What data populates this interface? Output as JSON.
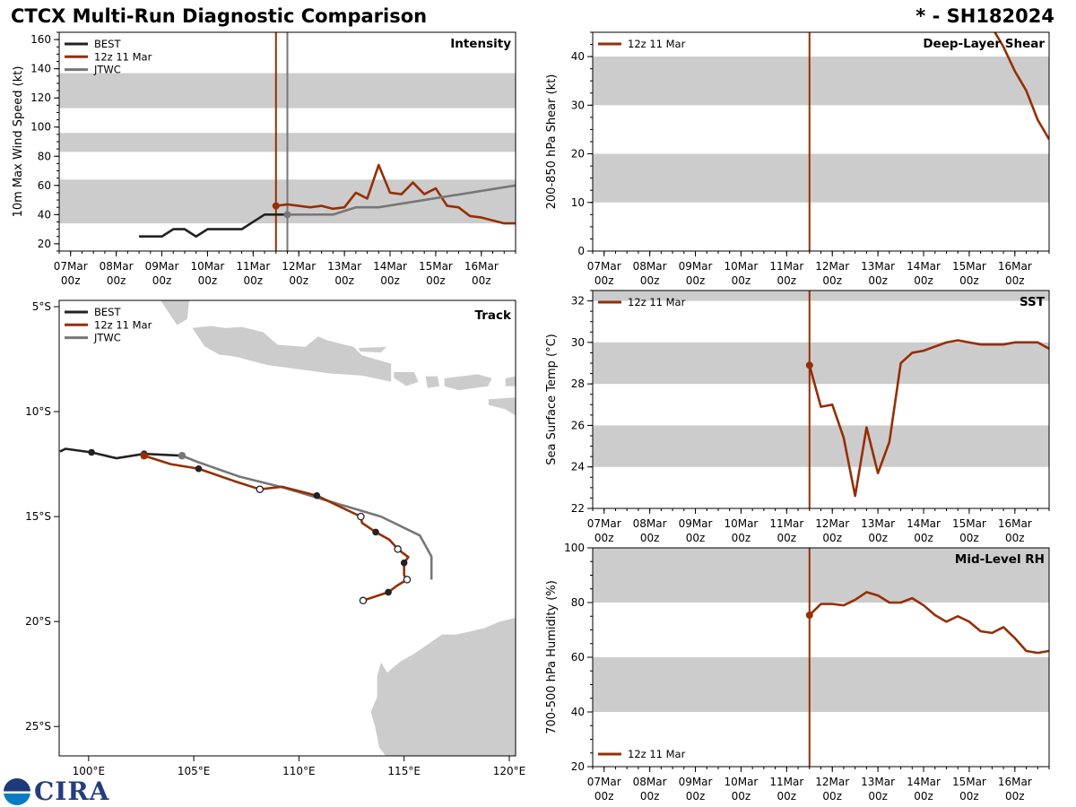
{
  "title": "CTCX Multi-Run Diagnostic Comparison",
  "storm_id": "* - SH182024",
  "logo_text": "CIRA",
  "colors": {
    "best": "#222222",
    "forecast": "#952f04",
    "jtwc": "#777777",
    "band": "#cccccc"
  },
  "legend": {
    "best": "BEST",
    "forecast": "12z 11 Mar",
    "jtwc": "JTWC"
  },
  "time_ticks": [
    "07Mar 00z",
    "08Mar 00z",
    "09Mar 00z",
    "10Mar 00z",
    "11Mar 00z",
    "12Mar 00z",
    "13Mar 00z",
    "14Mar 00z",
    "15Mar 00z",
    "16Mar 00z"
  ],
  "chart_data": [
    {
      "id": "intensity",
      "type": "line",
      "title": "Intensity",
      "ylabel": "10m Max Wind Speed (kt)",
      "ylim": [
        15,
        165
      ],
      "xlim": [
        "06Mar 18z",
        "16Mar 18z"
      ],
      "yticks": [
        20,
        40,
        60,
        80,
        100,
        120,
        140,
        160
      ],
      "bands": [
        [
          34,
          64
        ],
        [
          83,
          96
        ],
        [
          113,
          137
        ]
      ],
      "vlines": [
        {
          "x": "11Mar 12z",
          "series": "forecast"
        },
        {
          "x": "11Mar 18z",
          "series": "jtwc"
        }
      ],
      "legend_position": "top-left",
      "series": [
        {
          "name": "BEST",
          "key": "best",
          "x": [
            "08Mar 12z",
            "08Mar 18z",
            "09Mar 00z",
            "09Mar 06z",
            "09Mar 12z",
            "09Mar 18z",
            "10Mar 00z",
            "10Mar 06z",
            "10Mar 12z",
            "10Mar 18z",
            "11Mar 00z",
            "11Mar 06z",
            "11Mar 12z",
            "11Mar 18z"
          ],
          "y": [
            25,
            25,
            25,
            30,
            30,
            25,
            30,
            30,
            30,
            30,
            35,
            40,
            40,
            40
          ]
        },
        {
          "name": "12z 11 Mar",
          "key": "forecast",
          "start_marker": true,
          "x": [
            "11Mar 12z",
            "11Mar 18z",
            "12Mar 00z",
            "12Mar 06z",
            "12Mar 12z",
            "12Mar 18z",
            "13Mar 00z",
            "13Mar 06z",
            "13Mar 12z",
            "13Mar 18z",
            "14Mar 00z",
            "14Mar 06z",
            "14Mar 12z",
            "14Mar 18z",
            "15Mar 00z",
            "15Mar 06z",
            "15Mar 12z",
            "15Mar 18z",
            "16Mar 00z",
            "16Mar 06z",
            "16Mar 12z",
            "16Mar 18z"
          ],
          "y": [
            46,
            47,
            46,
            45,
            46,
            44,
            45,
            55,
            51,
            74,
            55,
            54,
            62,
            54,
            58,
            46,
            45,
            39,
            38,
            36,
            34,
            34
          ]
        },
        {
          "name": "JTWC",
          "key": "jtwc",
          "start_marker": true,
          "x": [
            "11Mar 18z",
            "12Mar 18z",
            "13Mar 06z",
            "13Mar 18z",
            "16Mar 18z"
          ],
          "y": [
            40,
            40,
            45,
            45,
            60
          ]
        }
      ]
    },
    {
      "id": "shear",
      "type": "line",
      "title": "Deep-Layer Shear",
      "ylabel": "200-850 hPa Shear (kt)",
      "ylim": [
        0,
        45
      ],
      "xlim": [
        "06Mar 18z",
        "16Mar 18z"
      ],
      "yticks": [
        0,
        10,
        20,
        30,
        40
      ],
      "bands": [
        [
          10,
          20
        ],
        [
          30,
          40
        ]
      ],
      "vlines": [
        {
          "x": "11Mar 12z",
          "series": "forecast"
        }
      ],
      "legend_position": "top-left",
      "series": [
        {
          "name": "12z 11 Mar",
          "key": "forecast",
          "x": [
            "15Mar 12z",
            "15Mar 18z",
            "16Mar 00z",
            "16Mar 06z",
            "16Mar 12z",
            "16Mar 18z"
          ],
          "y": [
            46,
            42,
            37,
            33,
            27,
            23
          ]
        }
      ]
    },
    {
      "id": "sst",
      "type": "line",
      "title": "SST",
      "ylabel": "Sea Surface Temp (°C)",
      "ylim": [
        22,
        32.5
      ],
      "xlim": [
        "06Mar 18z",
        "16Mar 18z"
      ],
      "yticks": [
        22,
        24,
        26,
        28,
        30,
        32
      ],
      "bands": [
        [
          24,
          26
        ],
        [
          28,
          30
        ],
        [
          32,
          34
        ]
      ],
      "vlines": [
        {
          "x": "11Mar 12z",
          "series": "forecast"
        }
      ],
      "legend_position": "top-left",
      "series": [
        {
          "name": "12z 11 Mar",
          "key": "forecast",
          "start_marker": true,
          "x": [
            "11Mar 12z",
            "11Mar 18z",
            "12Mar 00z",
            "12Mar 06z",
            "12Mar 12z",
            "12Mar 18z",
            "13Mar 00z",
            "13Mar 06z",
            "13Mar 12z",
            "13Mar 18z",
            "14Mar 00z",
            "14Mar 06z",
            "14Mar 12z",
            "14Mar 18z",
            "15Mar 00z",
            "15Mar 06z",
            "15Mar 12z",
            "15Mar 18z",
            "16Mar 00z",
            "16Mar 06z",
            "16Mar 12z",
            "16Mar 18z"
          ],
          "y": [
            28.9,
            26.9,
            27.0,
            25.4,
            22.6,
            25.9,
            23.7,
            25.2,
            29.0,
            29.5,
            29.6,
            29.8,
            30.0,
            30.1,
            30.0,
            29.9,
            29.9,
            29.9,
            30.0,
            30.0,
            30.0,
            29.7
          ]
        }
      ]
    },
    {
      "id": "rh",
      "type": "line",
      "title": "Mid-Level RH",
      "ylabel": "700-500 hPa Humidity (%)",
      "ylim": [
        20,
        100
      ],
      "xlim": [
        "06Mar 18z",
        "16Mar 18z"
      ],
      "yticks": [
        20,
        40,
        60,
        80,
        100
      ],
      "bands": [
        [
          40,
          60
        ],
        [
          80,
          100
        ]
      ],
      "vlines": [
        {
          "x": "11Mar 12z",
          "series": "forecast"
        }
      ],
      "legend_position": "bottom-left",
      "series": [
        {
          "name": "12z 11 Mar",
          "key": "forecast",
          "start_marker": true,
          "x": [
            "11Mar 12z",
            "11Mar 18z",
            "12Mar 00z",
            "12Mar 06z",
            "12Mar 12z",
            "12Mar 18z",
            "13Mar 00z",
            "13Mar 06z",
            "13Mar 12z",
            "13Mar 18z",
            "14Mar 00z",
            "14Mar 06z",
            "14Mar 12z",
            "14Mar 18z",
            "15Mar 00z",
            "15Mar 06z",
            "15Mar 12z",
            "15Mar 18z",
            "16Mar 00z",
            "16Mar 06z",
            "16Mar 12z",
            "16Mar 18z"
          ],
          "y": [
            75.4,
            79.5,
            79.5,
            79,
            81,
            83.8,
            82.6,
            80,
            80,
            81.6,
            79,
            75.4,
            73,
            75,
            73,
            69.5,
            68.9,
            71,
            67,
            62.3,
            61.6,
            62.3
          ]
        }
      ]
    },
    {
      "id": "track",
      "type": "line",
      "title": "Track",
      "xlim": [
        98.6,
        120.3
      ],
      "ylim": [
        -26.4,
        -4.7
      ],
      "xticks": [
        {
          "v": 100,
          "label": "100°E"
        },
        {
          "v": 105,
          "label": "105°E"
        },
        {
          "v": 110,
          "label": "110°E"
        },
        {
          "v": 115,
          "label": "115°E"
        },
        {
          "v": 120,
          "label": "120°E"
        }
      ],
      "yticks": [
        {
          "v": -5,
          "label": "5°S"
        },
        {
          "v": -10,
          "label": "10°S"
        },
        {
          "v": -15,
          "label": "15°S"
        },
        {
          "v": -20,
          "label": "20°S"
        },
        {
          "v": -25,
          "label": "25°S"
        }
      ],
      "legend_position": "top-left",
      "series": [
        {
          "name": "BEST",
          "key": "best",
          "lon": [
            98.64,
            98.9,
            100.14,
            101.32,
            102.64,
            104.44
          ],
          "lat": [
            -11.9,
            -11.77,
            -11.94,
            -12.22,
            -12.01,
            -12.1
          ],
          "markers": [
            "",
            "",
            "filled",
            "",
            "filled",
            ""
          ]
        },
        {
          "name": "12z 11 Mar",
          "key": "forecast",
          "lon": [
            102.64,
            103.9,
            105.23,
            106.9,
            108.14,
            109.2,
            110.85,
            112.94,
            113.0,
            113.65,
            114.3,
            114.7,
            115.2,
            115.0,
            115.0,
            115.14,
            114.65,
            114.25,
            113.05
          ],
          "lat": [
            -12.1,
            -12.5,
            -12.72,
            -13.3,
            -13.7,
            -13.58,
            -14.0,
            -15.0,
            -15.3,
            -15.74,
            -16.1,
            -16.55,
            -16.93,
            -17.2,
            -17.8,
            -18.0,
            -18.3,
            -18.6,
            -19.0
          ],
          "markers": [
            "start",
            "",
            "filled",
            "",
            "open",
            "",
            "filled",
            "open",
            "",
            "filled",
            "",
            "open",
            "",
            "filled",
            "",
            "open",
            "",
            "filled",
            "open"
          ]
        },
        {
          "name": "JTWC",
          "key": "jtwc",
          "lon": [
            104.44,
            105.19,
            107.18,
            109.2,
            111.2,
            113.9,
            115.75,
            116.3,
            116.3
          ],
          "lat": [
            -12.1,
            -12.4,
            -13.1,
            -13.6,
            -14.2,
            -15.0,
            -15.9,
            -16.9,
            -18.0
          ],
          "markers": [
            "start",
            "",
            "",
            "",
            "",
            "",
            "",
            "",
            ""
          ]
        }
      ]
    }
  ]
}
